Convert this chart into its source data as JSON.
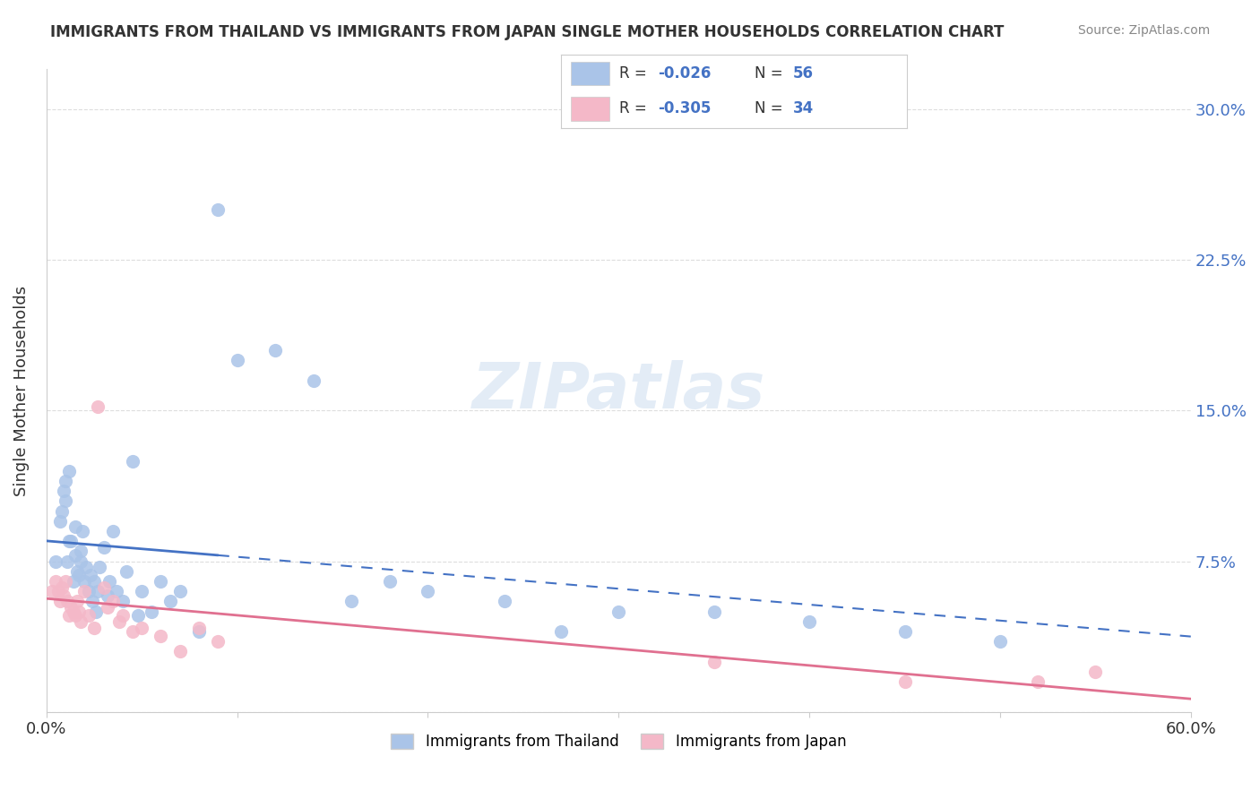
{
  "title": "IMMIGRANTS FROM THAILAND VS IMMIGRANTS FROM JAPAN SINGLE MOTHER HOUSEHOLDS CORRELATION CHART",
  "source": "Source: ZipAtlas.com",
  "ylabel": "Single Mother Households",
  "xlim": [
    0.0,
    0.6
  ],
  "ylim": [
    0.0,
    0.32
  ],
  "yticks": [
    0.0,
    0.075,
    0.15,
    0.225,
    0.3
  ],
  "ytick_labels": [
    "",
    "7.5%",
    "15.0%",
    "22.5%",
    "30.0%"
  ],
  "xticks": [
    0.0,
    0.1,
    0.2,
    0.3,
    0.4,
    0.5,
    0.6
  ],
  "xtick_labels": [
    "0.0%",
    "",
    "",
    "",
    "",
    "",
    "60.0%"
  ],
  "background_color": "#ffffff",
  "grid_color": "#dddddd",
  "watermark": "ZIPatlas",
  "thailand_color": "#aac4e8",
  "japan_color": "#f4b8c8",
  "trendline_thailand_color": "#4472c4",
  "trendline_japan_color": "#e07090",
  "legend_thailand_label": "Immigrants from Thailand",
  "legend_japan_label": "Immigrants from Japan",
  "R_thailand": -0.026,
  "N_thailand": 56,
  "R_japan": -0.305,
  "N_japan": 34,
  "thailand_x": [
    0.005,
    0.007,
    0.008,
    0.009,
    0.01,
    0.01,
    0.011,
    0.012,
    0.012,
    0.013,
    0.014,
    0.015,
    0.015,
    0.016,
    0.017,
    0.018,
    0.018,
    0.019,
    0.02,
    0.021,
    0.022,
    0.023,
    0.024,
    0.025,
    0.026,
    0.027,
    0.028,
    0.03,
    0.032,
    0.033,
    0.035,
    0.037,
    0.04,
    0.042,
    0.045,
    0.048,
    0.05,
    0.055,
    0.06,
    0.065,
    0.07,
    0.08,
    0.09,
    0.1,
    0.12,
    0.14,
    0.16,
    0.18,
    0.2,
    0.24,
    0.27,
    0.3,
    0.35,
    0.4,
    0.45,
    0.5
  ],
  "thailand_y": [
    0.075,
    0.095,
    0.1,
    0.11,
    0.105,
    0.115,
    0.075,
    0.085,
    0.12,
    0.085,
    0.065,
    0.078,
    0.092,
    0.07,
    0.068,
    0.08,
    0.075,
    0.09,
    0.065,
    0.072,
    0.06,
    0.068,
    0.055,
    0.065,
    0.05,
    0.06,
    0.072,
    0.082,
    0.058,
    0.065,
    0.09,
    0.06,
    0.055,
    0.07,
    0.125,
    0.048,
    0.06,
    0.05,
    0.065,
    0.055,
    0.06,
    0.04,
    0.25,
    0.175,
    0.18,
    0.165,
    0.055,
    0.065,
    0.06,
    0.055,
    0.04,
    0.05,
    0.05,
    0.045,
    0.04,
    0.035
  ],
  "japan_x": [
    0.003,
    0.005,
    0.006,
    0.007,
    0.008,
    0.009,
    0.01,
    0.011,
    0.012,
    0.013,
    0.014,
    0.015,
    0.016,
    0.017,
    0.018,
    0.02,
    0.022,
    0.025,
    0.027,
    0.03,
    0.032,
    0.035,
    0.038,
    0.04,
    0.045,
    0.05,
    0.06,
    0.07,
    0.08,
    0.09,
    0.35,
    0.45,
    0.52,
    0.55
  ],
  "japan_y": [
    0.06,
    0.065,
    0.06,
    0.055,
    0.062,
    0.058,
    0.065,
    0.055,
    0.048,
    0.052,
    0.05,
    0.048,
    0.055,
    0.05,
    0.045,
    0.06,
    0.048,
    0.042,
    0.152,
    0.062,
    0.052,
    0.055,
    0.045,
    0.048,
    0.04,
    0.042,
    0.038,
    0.03,
    0.042,
    0.035,
    0.025,
    0.015,
    0.015,
    0.02
  ],
  "trendline_solid_end": 0.09
}
